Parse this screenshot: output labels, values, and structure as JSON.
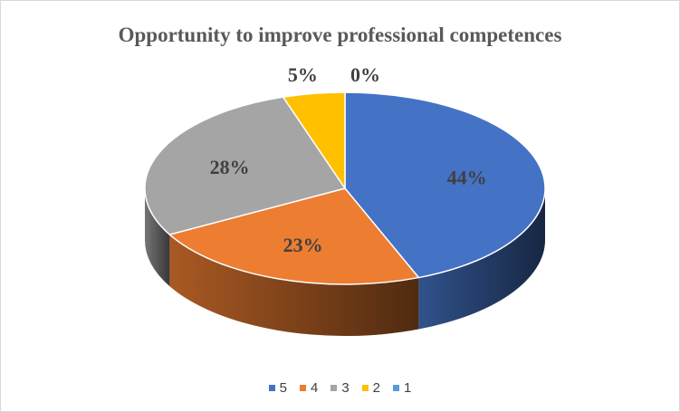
{
  "chart_data": {
    "type": "pie",
    "title": "Opportunity to improve professional competences",
    "categories": [
      "5",
      "4",
      "3",
      "2",
      "1"
    ],
    "values": [
      44,
      23,
      28,
      5,
      0
    ],
    "labels": [
      "44%",
      "23%",
      "28%",
      "5%",
      "0%"
    ],
    "colors": [
      "#4472C4",
      "#ED7D31",
      "#A5A5A5",
      "#FFC000",
      "#5B9BD5"
    ],
    "style": "3d-pie",
    "legend_position": "bottom"
  }
}
